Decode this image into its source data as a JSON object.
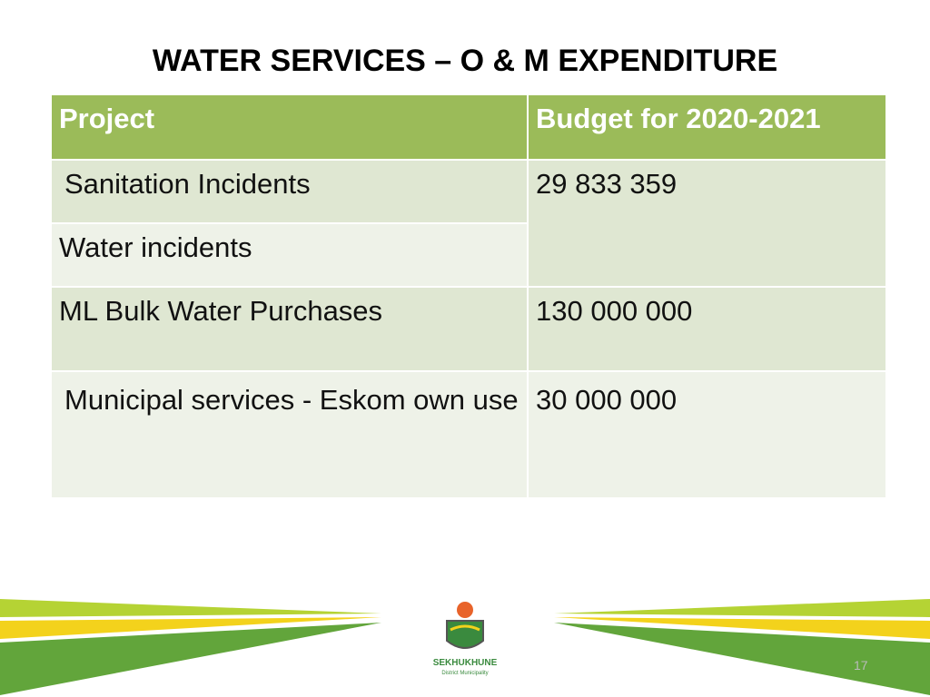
{
  "header": {
    "title": "WATER SERVICES – O & M EXPENDITURE"
  },
  "table": {
    "columns": [
      "Project",
      "Budget for 2020-2021"
    ],
    "rows": [
      [
        "Sanitation Incidents",
        "29 833 359"
      ],
      [
        "Water incidents",
        null
      ],
      [
        "ML Bulk Water Purchases",
        "130 000 000"
      ],
      [
        "Municipal services - Eskom own use",
        "30 000 000"
      ]
    ]
  },
  "footer": {
    "logo_name": "SEKHUKHUNE",
    "logo_subtitle": "District Municipality",
    "page_number": "17"
  }
}
